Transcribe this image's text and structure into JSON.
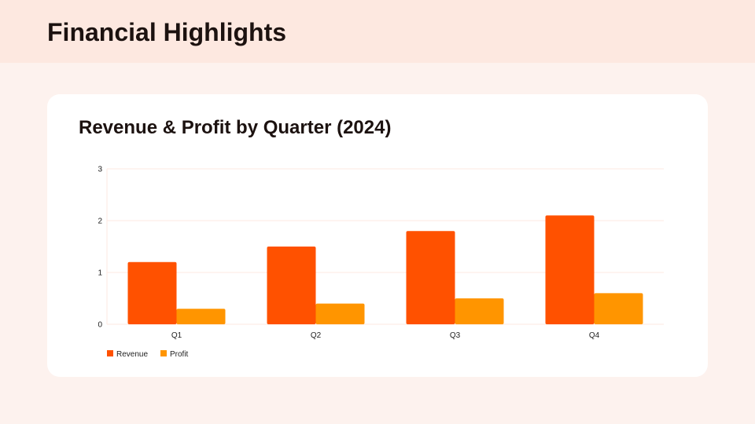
{
  "header": {
    "title": "Financial Highlights"
  },
  "chart_data": {
    "type": "bar",
    "title": "Revenue & Profit by Quarter (2024)",
    "xlabel": "",
    "ylabel": "",
    "categories": [
      "Q1",
      "Q2",
      "Q3",
      "Q4"
    ],
    "series": [
      {
        "name": "Revenue",
        "color": "#ff5100",
        "values": [
          1.2,
          1.5,
          1.8,
          2.1
        ]
      },
      {
        "name": "Profit",
        "color": "#ff9500",
        "values": [
          0.3,
          0.4,
          0.5,
          0.6
        ]
      }
    ],
    "ylim": [
      0,
      3
    ],
    "yticks": [
      "0",
      "1",
      "2",
      "3"
    ],
    "grid": true,
    "legend": "bottom-left"
  },
  "colors": {
    "header_bg": "#fde8e0",
    "page_bg": "#fdf2ee",
    "grid": "#fde8e0"
  }
}
